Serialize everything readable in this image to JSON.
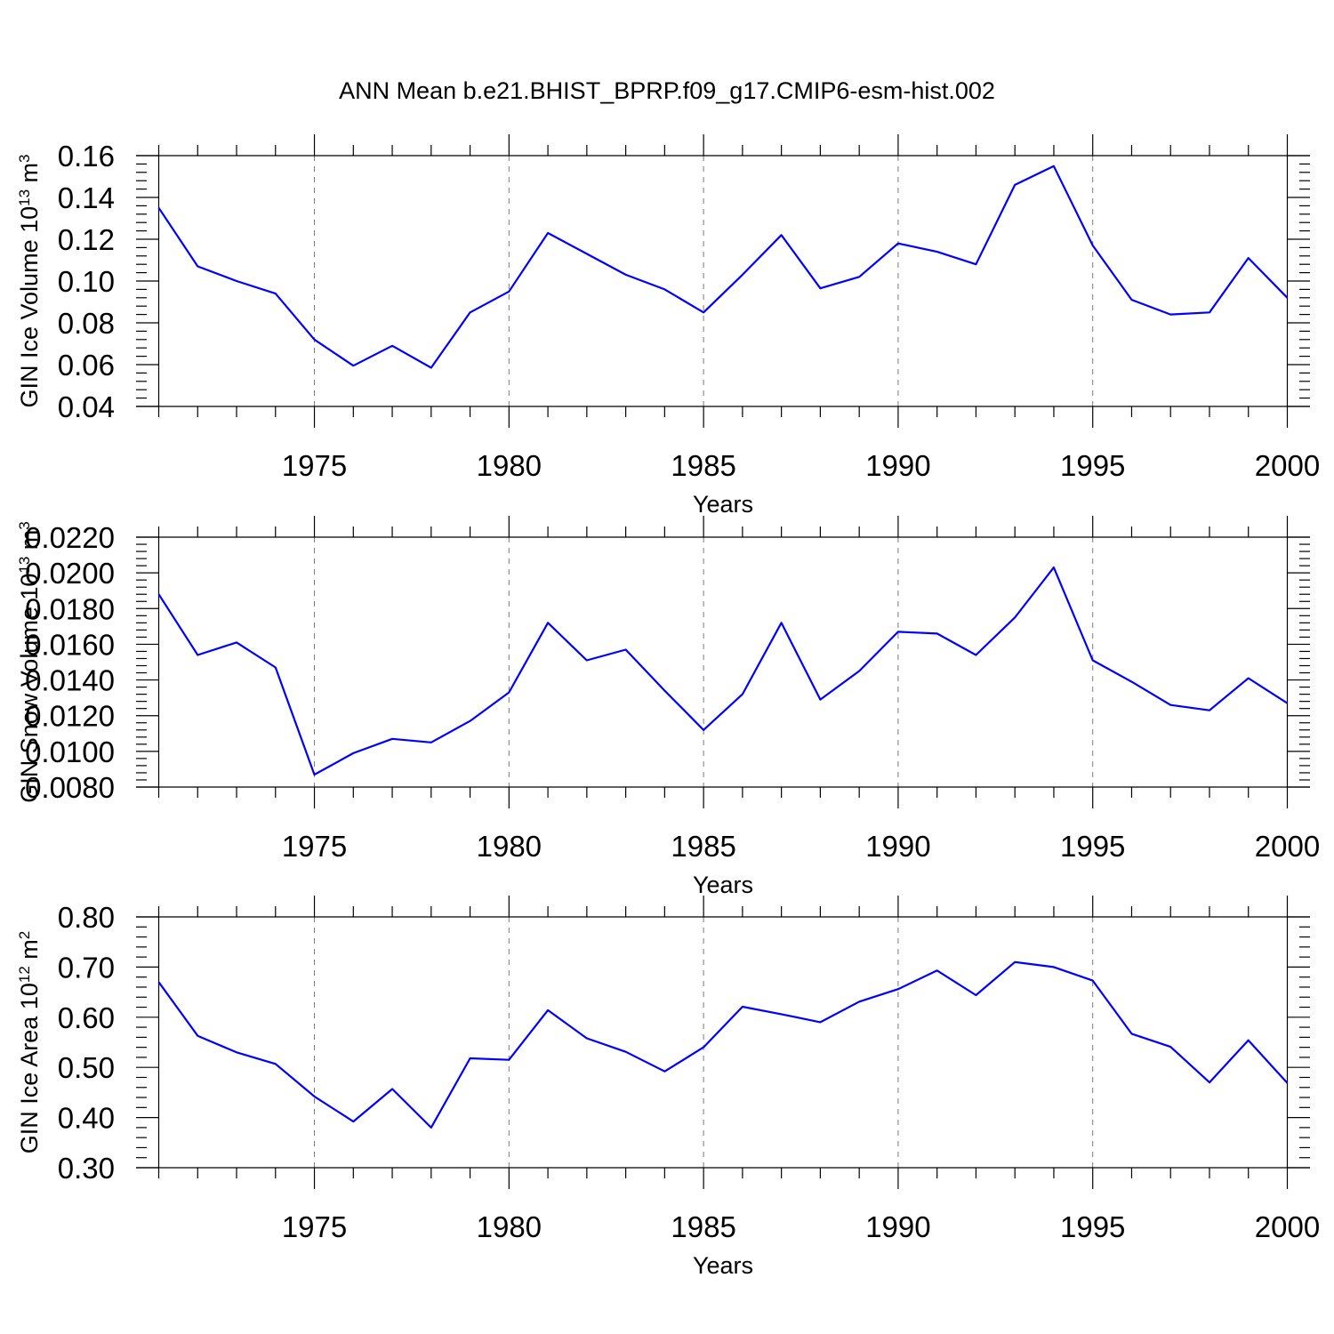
{
  "title": "ANN Mean b.e21.BHIST_BPRP.f09_g17.CMIP6-esm-hist.002",
  "colors": {
    "line": "#0000ff",
    "grid": "#7a7a7a",
    "axis": "#000000"
  },
  "chart_data": [
    {
      "type": "line",
      "xlabel": "Years",
      "ylabel_text": "GIN Ice Volume 10",
      "ylabel_exp": "13",
      "ylabel_unit": " m",
      "ylabel_unit_exp": "3",
      "xlim": [
        1971,
        2000
      ],
      "ylim": [
        0.04,
        0.16
      ],
      "x_ticks": [
        1975,
        1980,
        1985,
        1990,
        1995,
        2000
      ],
      "y_ticks": [
        0.04,
        0.06,
        0.08,
        0.1,
        0.12,
        0.14,
        0.16
      ],
      "y_tick_labels": [
        "0.04",
        "0.06",
        "0.08",
        "0.10",
        "0.12",
        "0.14",
        "0.16"
      ],
      "grid": "vertical dashed at major x ticks",
      "x": [
        1971,
        1972,
        1973,
        1974,
        1975,
        1976,
        1977,
        1978,
        1979,
        1980,
        1981,
        1982,
        1983,
        1984,
        1985,
        1986,
        1987,
        1988,
        1989,
        1990,
        1991,
        1992,
        1993,
        1994,
        1995,
        1996,
        1997,
        1998,
        1999,
        2000
      ],
      "y": [
        0.135,
        0.107,
        0.1,
        0.094,
        0.072,
        0.0595,
        0.069,
        0.0585,
        0.085,
        0.095,
        0.123,
        0.113,
        0.103,
        0.096,
        0.085,
        0.103,
        0.122,
        0.0965,
        0.102,
        0.118,
        0.114,
        0.108,
        0.146,
        0.155,
        0.117,
        0.091,
        0.084,
        0.085,
        0.111,
        0.092
      ]
    },
    {
      "type": "line",
      "xlabel": "Years",
      "ylabel_text": "GIN Snow Volume 10",
      "ylabel_exp": "13",
      "ylabel_unit": " m",
      "ylabel_unit_exp": "3",
      "xlim": [
        1971,
        2000
      ],
      "ylim": [
        0.008,
        0.022
      ],
      "x_ticks": [
        1975,
        1980,
        1985,
        1990,
        1995,
        2000
      ],
      "y_ticks": [
        0.008,
        0.01,
        0.012,
        0.014,
        0.016,
        0.018,
        0.02,
        0.022
      ],
      "y_tick_labels": [
        "0.0080",
        "0.0100",
        "0.0120",
        "0.0140",
        "0.0160",
        "0.0180",
        "0.0200",
        "0.0220"
      ],
      "grid": "vertical dashed at major x ticks",
      "x": [
        1971,
        1972,
        1973,
        1974,
        1975,
        1976,
        1977,
        1978,
        1979,
        1980,
        1981,
        1982,
        1983,
        1984,
        1985,
        1986,
        1987,
        1988,
        1989,
        1990,
        1991,
        1992,
        1993,
        1994,
        1995,
        1996,
        1997,
        1998,
        1999,
        2000
      ],
      "y": [
        0.0188,
        0.0154,
        0.0161,
        0.0147,
        0.0087,
        0.0099,
        0.0107,
        0.0105,
        0.0117,
        0.0133,
        0.0172,
        0.0151,
        0.0157,
        0.0134,
        0.0112,
        0.0132,
        0.0172,
        0.0129,
        0.0145,
        0.0167,
        0.0166,
        0.0154,
        0.0175,
        0.0203,
        0.0151,
        0.0139,
        0.0126,
        0.0123,
        0.0141,
        0.0127
      ]
    },
    {
      "type": "line",
      "xlabel": "Years",
      "ylabel_text": "GIN Ice Area 10",
      "ylabel_exp": "12",
      "ylabel_unit": " m",
      "ylabel_unit_exp": "2",
      "xlim": [
        1971,
        2000
      ],
      "ylim": [
        0.3,
        0.8
      ],
      "x_ticks": [
        1975,
        1980,
        1985,
        1990,
        1995,
        2000
      ],
      "y_ticks": [
        0.3,
        0.4,
        0.5,
        0.6,
        0.7,
        0.8
      ],
      "y_tick_labels": [
        "0.30",
        "0.40",
        "0.50",
        "0.60",
        "0.70",
        "0.80"
      ],
      "grid": "vertical dashed at major x ticks",
      "x": [
        1971,
        1972,
        1973,
        1974,
        1975,
        1976,
        1977,
        1978,
        1979,
        1980,
        1981,
        1982,
        1983,
        1984,
        1985,
        1986,
        1987,
        1988,
        1989,
        1990,
        1991,
        1992,
        1993,
        1994,
        1995,
        1996,
        1997,
        1998,
        1999,
        2000
      ],
      "y": [
        0.67,
        0.563,
        0.53,
        0.507,
        0.442,
        0.392,
        0.457,
        0.38,
        0.518,
        0.515,
        0.614,
        0.558,
        0.531,
        0.492,
        0.54,
        0.621,
        0.606,
        0.59,
        0.631,
        0.656,
        0.693,
        0.644,
        0.71,
        0.7,
        0.673,
        0.567,
        0.541,
        0.47,
        0.554,
        0.469
      ]
    }
  ]
}
